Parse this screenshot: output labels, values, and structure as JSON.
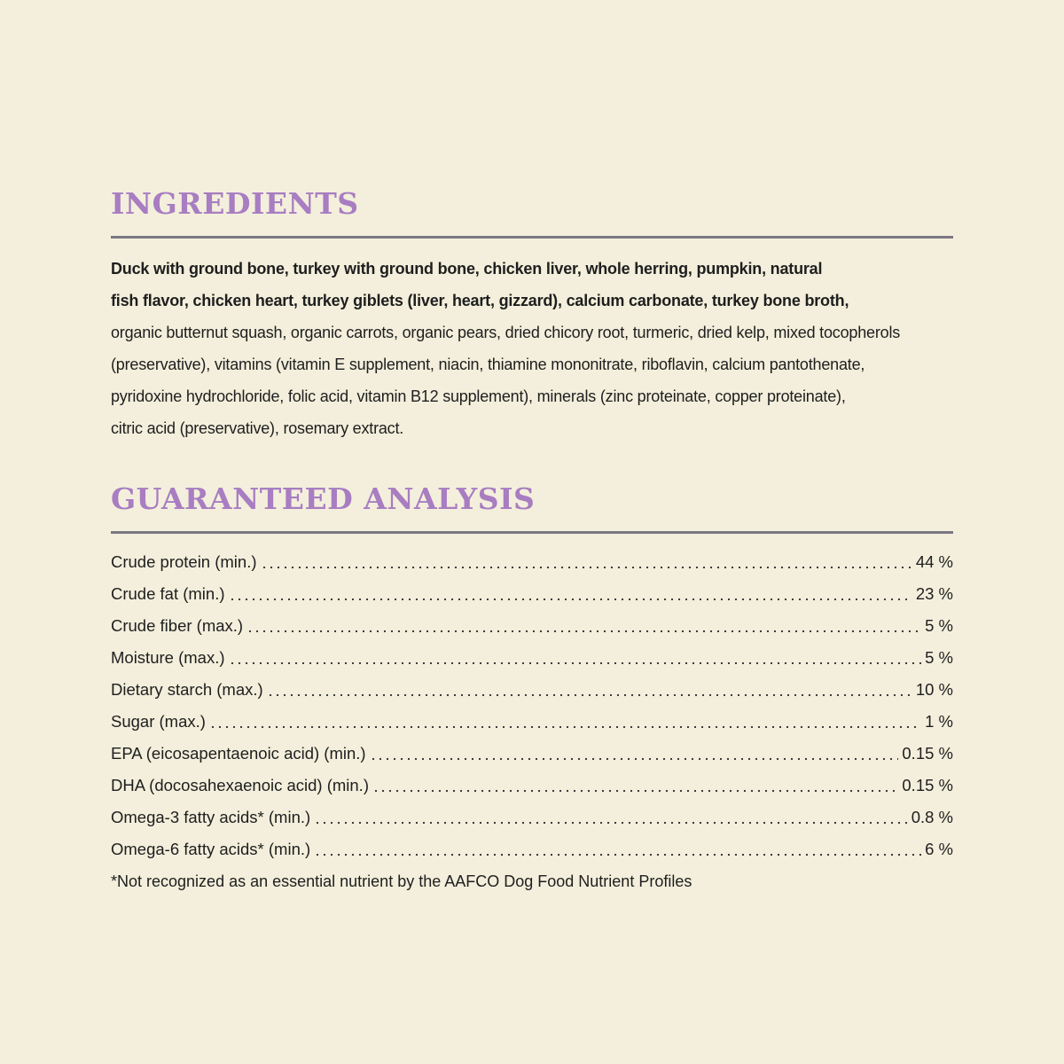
{
  "ingredients": {
    "title": "INGREDIENTS",
    "bold_lines": [
      "Duck with ground bone, turkey with ground bone, chicken liver, whole herring, pumpkin, natural",
      "fish flavor, chicken heart, turkey giblets (liver, heart, gizzard), calcium carbonate, turkey bone broth,"
    ],
    "regular_lines": [
      "organic butternut squash, organic carrots, organic pears, dried chicory root, turmeric, dried kelp, mixed tocopherols",
      "(preservative), vitamins (vitamin E supplement, niacin, thiamine mononitrate, riboflavin, calcium pantothenate,",
      "pyridoxine hydrochloride, folic acid, vitamin B12 supplement), minerals (zinc proteinate, copper proteinate),",
      "citric acid (preservative), rosemary extract."
    ]
  },
  "analysis": {
    "title": "GUARANTEED ANALYSIS",
    "rows": [
      [
        "Crude protein (min.)",
        "44 %"
      ],
      [
        "Crude fat (min.)",
        "23 %"
      ],
      [
        "Crude fiber (max.)",
        "5 %"
      ],
      [
        "Moisture (max.)",
        "5 %"
      ],
      [
        "Dietary starch (max.)",
        "10 %"
      ],
      [
        "Sugar (max.)",
        "1 %"
      ],
      [
        "EPA (eicosapentaenoic acid) (min.)",
        "0.15 %"
      ],
      [
        "DHA (docosahexaenoic acid) (min.)",
        "0.15 %"
      ],
      [
        "Omega-3 fatty acids* (min.)",
        "0.8 %"
      ],
      [
        "Omega-6 fatty acids* (min.)",
        "6 %"
      ]
    ],
    "footnote": "*Not recognized as an essential nutrient by the AAFCO Dog Food Nutrient Profiles"
  }
}
